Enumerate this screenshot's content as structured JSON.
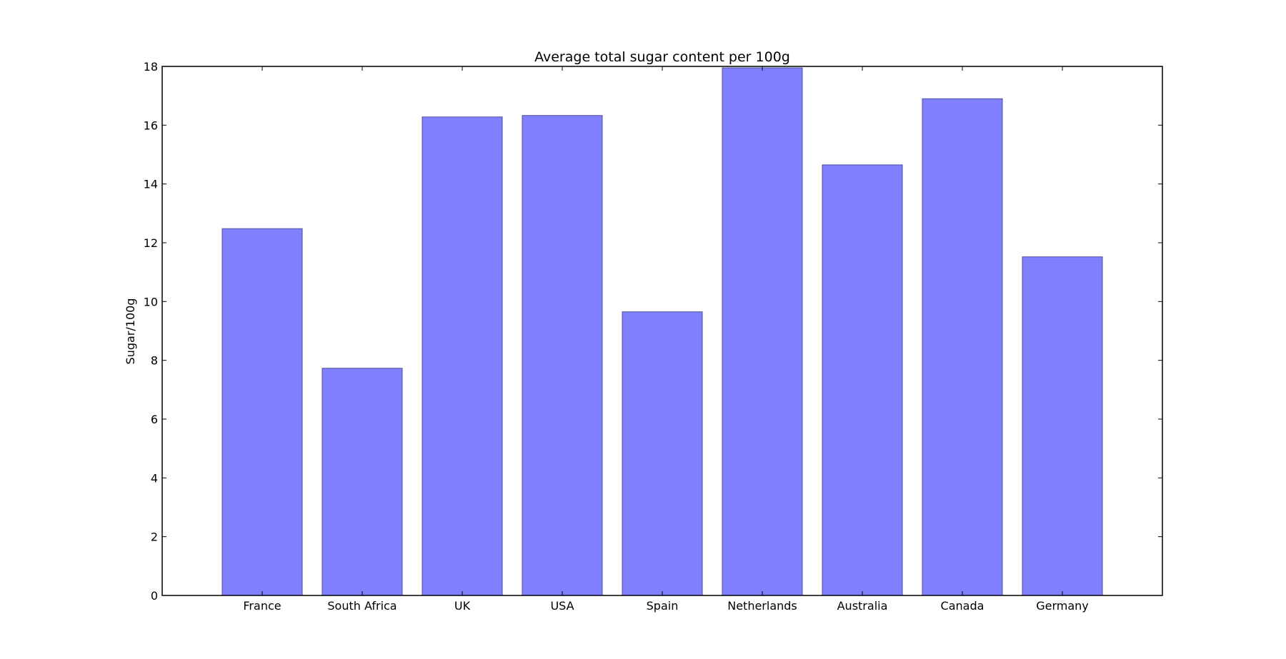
{
  "chart_data": {
    "type": "bar",
    "title": "Average total sugar content per 100g",
    "xlabel": "",
    "ylabel": "Sugar/100g",
    "categories": [
      "France",
      "South Africa",
      "UK",
      "USA",
      "Spain",
      "Netherlands",
      "Australia",
      "Canada",
      "Germany"
    ],
    "values": [
      12.48,
      7.73,
      16.28,
      16.33,
      9.65,
      17.95,
      14.65,
      16.9,
      11.52
    ],
    "ylim": [
      0,
      18
    ],
    "yticks": [
      "0",
      "2",
      "4",
      "6",
      "8",
      "10",
      "12",
      "14",
      "16",
      "18"
    ],
    "xlim": [
      -1,
      9
    ],
    "grid": false,
    "legend": "none",
    "bar_color": "#8080ff",
    "bar_edge_color": "#4d4d99"
  }
}
